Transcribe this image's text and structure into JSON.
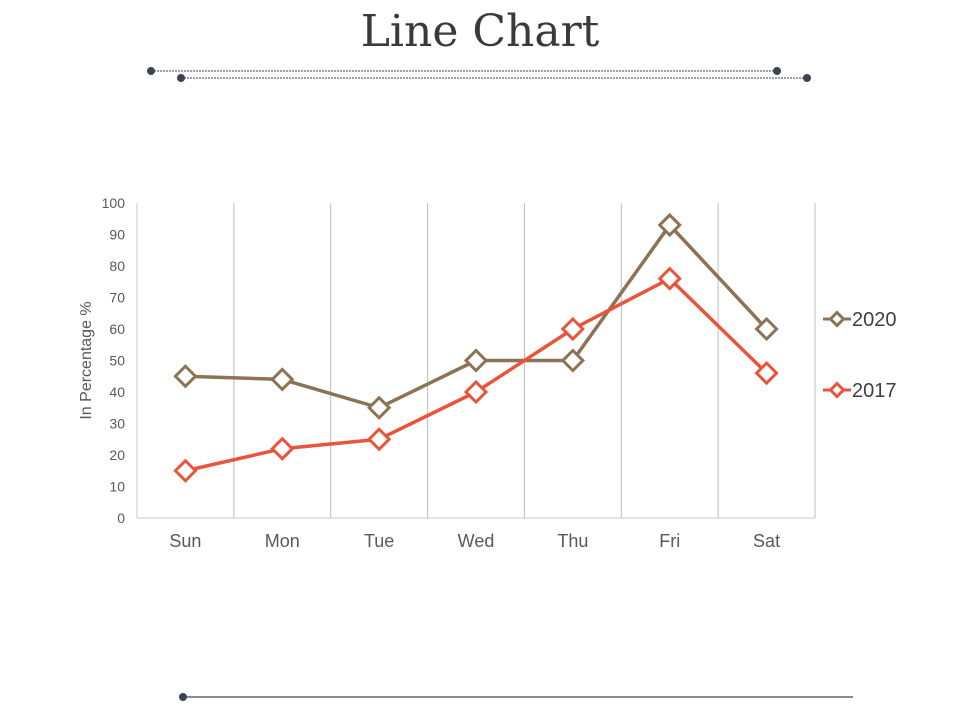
{
  "title": "Line Chart",
  "colors": {
    "series_2020": "#8B7355",
    "series_2017": "#E8553A",
    "gridline": "#B8BEC6",
    "axis": "#C8C8C8",
    "decor_line": "#3D4451"
  },
  "chart_data": {
    "type": "line",
    "categories": [
      "Sun",
      "Mon",
      "Tue",
      "Wed",
      "Thu",
      "Fri",
      "Sat"
    ],
    "series": [
      {
        "name": "2020",
        "values": [
          45,
          44,
          35,
          50,
          50,
          93,
          60
        ],
        "color": "#8B7355",
        "marker": "diamond-open"
      },
      {
        "name": "2017",
        "values": [
          15,
          22,
          25,
          40,
          60,
          76,
          46
        ],
        "color": "#E8553A",
        "marker": "diamond-open"
      }
    ],
    "ylabel": "In Percentage %",
    "xlabel": "",
    "ylim": [
      0,
      100
    ],
    "yticks": [
      0,
      10,
      20,
      30,
      40,
      50,
      60,
      70,
      80,
      90,
      100
    ],
    "grid": "vertical category separators",
    "legend_position": "right"
  }
}
